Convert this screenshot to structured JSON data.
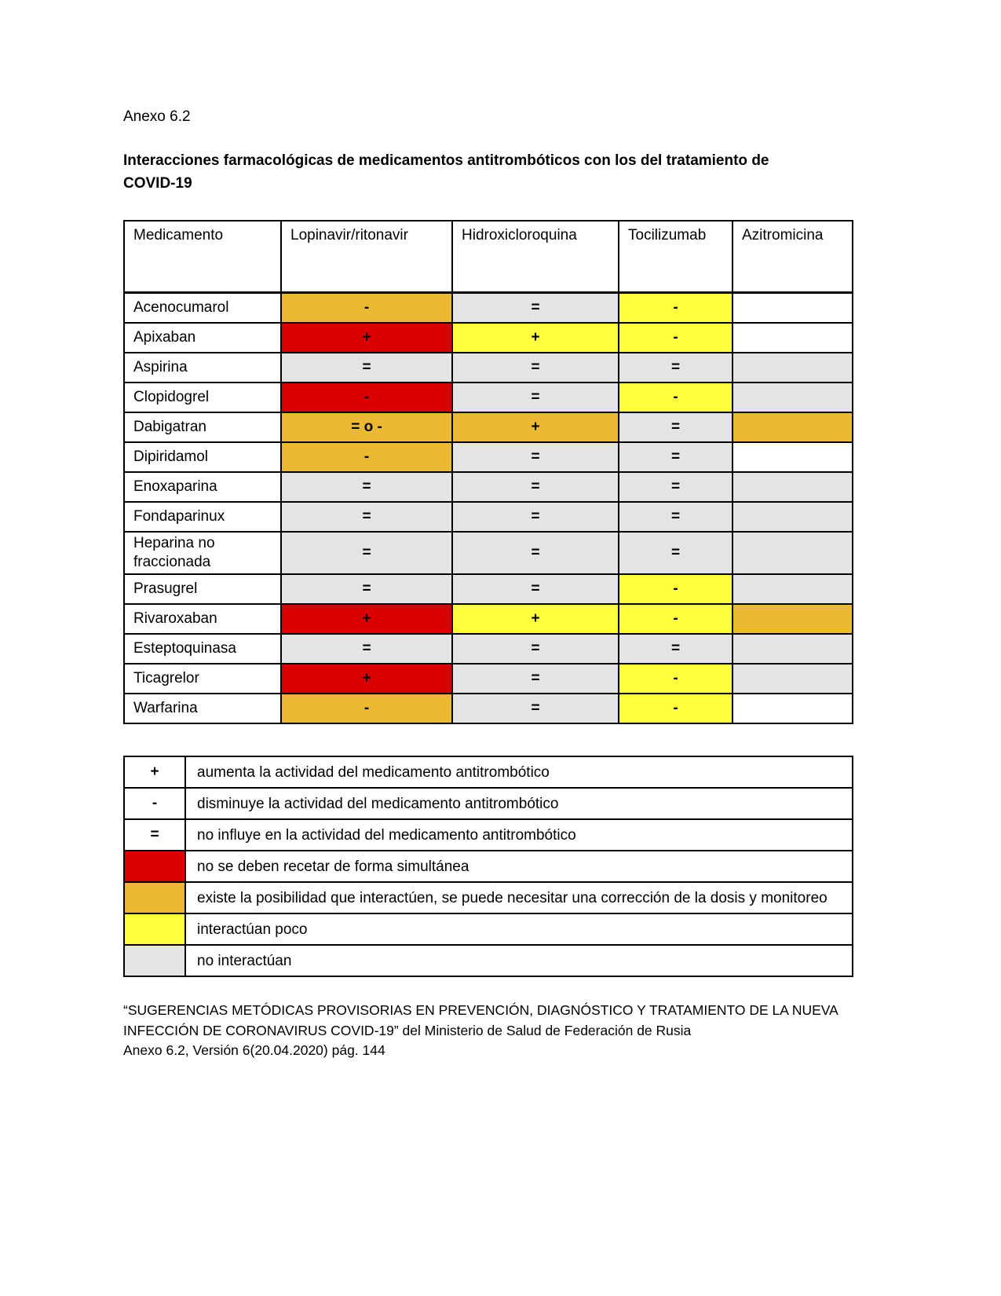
{
  "page": {
    "annex_label": "Anexo 6.2",
    "title": "Interacciones farmacológicas de medicamentos antitrombóticos con los del tratamiento de COVID-19"
  },
  "colors": {
    "red": "#d80000",
    "orange": "#ebba31",
    "yellow": "#ffff3d",
    "gray": "#e5e3e3",
    "white": "#ffffff"
  },
  "table": {
    "headers": [
      "Medicamento",
      "Lopinavir/ritonavir",
      "Hidroxicloroquina",
      "Tocilizumab",
      "Azitromicina"
    ],
    "rows": [
      {
        "drug": "Acenocumarol",
        "cells": [
          {
            "v": "-",
            "color": "orange"
          },
          {
            "v": "=",
            "color": "gray"
          },
          {
            "v": "-",
            "color": "yellow"
          },
          {
            "v": "",
            "color": "white"
          }
        ]
      },
      {
        "drug": "Apixaban",
        "cells": [
          {
            "v": "+",
            "color": "red"
          },
          {
            "v": "+",
            "color": "yellow"
          },
          {
            "v": "-",
            "color": "yellow"
          },
          {
            "v": "",
            "color": "white"
          }
        ]
      },
      {
        "drug": "Aspirina",
        "cells": [
          {
            "v": "=",
            "color": "gray"
          },
          {
            "v": "=",
            "color": "gray"
          },
          {
            "v": "=",
            "color": "gray"
          },
          {
            "v": "",
            "color": "gray"
          }
        ]
      },
      {
        "drug": "Clopidogrel",
        "cells": [
          {
            "v": "-",
            "color": "red"
          },
          {
            "v": "=",
            "color": "gray"
          },
          {
            "v": "-",
            "color": "yellow"
          },
          {
            "v": "",
            "color": "gray"
          }
        ]
      },
      {
        "drug": "Dabigatran",
        "cells": [
          {
            "v": "= o -",
            "color": "orange"
          },
          {
            "v": "+",
            "color": "orange"
          },
          {
            "v": "=",
            "color": "gray"
          },
          {
            "v": "",
            "color": "orange"
          }
        ]
      },
      {
        "drug": "Dipiridamol",
        "cells": [
          {
            "v": "-",
            "color": "orange"
          },
          {
            "v": "=",
            "color": "gray"
          },
          {
            "v": "=",
            "color": "gray"
          },
          {
            "v": "",
            "color": "white"
          }
        ]
      },
      {
        "drug": "Enoxaparina",
        "cells": [
          {
            "v": "=",
            "color": "gray"
          },
          {
            "v": "=",
            "color": "gray"
          },
          {
            "v": "=",
            "color": "gray"
          },
          {
            "v": "",
            "color": "gray"
          }
        ]
      },
      {
        "drug": "Fondaparinux",
        "cells": [
          {
            "v": "=",
            "color": "gray"
          },
          {
            "v": "=",
            "color": "gray"
          },
          {
            "v": "=",
            "color": "gray"
          },
          {
            "v": "",
            "color": "gray"
          }
        ]
      },
      {
        "drug": "Heparina no fraccionada",
        "cells": [
          {
            "v": "=",
            "color": "gray"
          },
          {
            "v": "=",
            "color": "gray"
          },
          {
            "v": "=",
            "color": "gray"
          },
          {
            "v": "",
            "color": "gray"
          }
        ]
      },
      {
        "drug": "Prasugrel",
        "cells": [
          {
            "v": "=",
            "color": "gray"
          },
          {
            "v": "=",
            "color": "gray"
          },
          {
            "v": "-",
            "color": "yellow"
          },
          {
            "v": "",
            "color": "gray"
          }
        ]
      },
      {
        "drug": "Rivaroxaban",
        "cells": [
          {
            "v": "+",
            "color": "red"
          },
          {
            "v": "+",
            "color": "yellow"
          },
          {
            "v": "-",
            "color": "yellow"
          },
          {
            "v": "",
            "color": "orange"
          }
        ]
      },
      {
        "drug": "Esteptoquinasa",
        "cells": [
          {
            "v": "=",
            "color": "gray"
          },
          {
            "v": "=",
            "color": "gray"
          },
          {
            "v": "=",
            "color": "gray"
          },
          {
            "v": "",
            "color": "gray"
          }
        ]
      },
      {
        "drug": "Ticagrelor",
        "cells": [
          {
            "v": "+",
            "color": "red"
          },
          {
            "v": "=",
            "color": "gray"
          },
          {
            "v": "-",
            "color": "yellow"
          },
          {
            "v": "",
            "color": "gray"
          }
        ]
      },
      {
        "drug": "Warfarina",
        "cells": [
          {
            "v": "-",
            "color": "orange"
          },
          {
            "v": "=",
            "color": "gray"
          },
          {
            "v": "-",
            "color": "yellow"
          },
          {
            "v": "",
            "color": "white"
          }
        ]
      }
    ]
  },
  "legend": {
    "rows": [
      {
        "symbol": "+",
        "color": "white",
        "text": "aumenta la actividad del medicamento antitrombótico"
      },
      {
        "symbol": "-",
        "color": "white",
        "text": "disminuye la actividad del medicamento antitrombótico"
      },
      {
        "symbol": "=",
        "color": "white",
        "text": "no influye en la actividad del medicamento antitrombótico"
      },
      {
        "symbol": "",
        "color": "red",
        "text": "no se deben recetar de forma simultánea"
      },
      {
        "symbol": "",
        "color": "orange",
        "text": "existe la posibilidad que interactúen, se puede necesitar una corrección de la dosis y monitoreo"
      },
      {
        "symbol": "",
        "color": "yellow",
        "text": "interactúan poco"
      },
      {
        "symbol": "",
        "color": "gray",
        "text": "no interactúan"
      }
    ]
  },
  "footer": {
    "lines": [
      "“SUGERENCIAS METÓDICAS PROVISORIAS EN PREVENCIÓN, DIAGNÓSTICO Y TRATAMIENTO DE LA NUEVA",
      "INFECCIÓN DE CORONAVIRUS COVID-19” del Ministerio de Salud de Federación de Rusia",
      "Anexo 6.2, Versión 6(20.04.2020) pág. 144"
    ]
  }
}
